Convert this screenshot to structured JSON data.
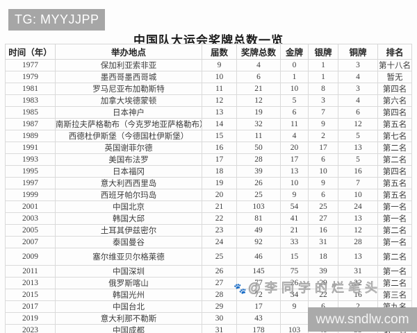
{
  "badge": {
    "text": "TG: MYYJJPP"
  },
  "title": "中国队大运会奖牌总数一览",
  "table": {
    "columns": [
      "时间（年）",
      "举办地点",
      "届数",
      "奖牌总数",
      "金牌",
      "银牌",
      "铜牌",
      "排名"
    ],
    "rows": [
      {
        "year": "1977",
        "host": "保加利亚索非亚",
        "edition": "9",
        "total": "4",
        "gold": "0",
        "silver": "1",
        "bronze": "3",
        "rank": "第十八名"
      },
      {
        "year": "1979",
        "host": "墨西哥墨西哥城",
        "edition": "10",
        "total": "6",
        "gold": "1",
        "silver": "1",
        "bronze": "4",
        "rank": "暂无"
      },
      {
        "year": "1981",
        "host": "罗马尼亚布加勒斯特",
        "edition": "11",
        "total": "21",
        "gold": "10",
        "silver": "8",
        "bronze": "3",
        "rank": "第四名"
      },
      {
        "year": "1983",
        "host": "加拿大埃德蒙顿",
        "edition": "12",
        "total": "12",
        "gold": "5",
        "silver": "3",
        "bronze": "4",
        "rank": "第六名"
      },
      {
        "year": "1985",
        "host": "日本神户",
        "edition": "13",
        "total": "19",
        "gold": "6",
        "silver": "7",
        "bronze": "6",
        "rank": "第四名"
      },
      {
        "year": "1987",
        "host": "南斯拉夫萨格勒布（今克罗地亚萨格勒布）",
        "edition": "14",
        "total": "32",
        "gold": "11",
        "silver": "9",
        "bronze": "12",
        "rank": "第五名"
      },
      {
        "year": "1989",
        "host": "西德杜伊斯堡（今德国杜伊斯堡）",
        "edition": "15",
        "total": "11",
        "gold": "4",
        "silver": "2",
        "bronze": "5",
        "rank": "第七名"
      },
      {
        "year": "1991",
        "host": "英国谢菲尔德",
        "edition": "16",
        "total": "50",
        "gold": "20",
        "silver": "17",
        "bronze": "13",
        "rank": "第二名"
      },
      {
        "year": "1993",
        "host": "美国布法罗",
        "edition": "17",
        "total": "28",
        "gold": "17",
        "silver": "6",
        "bronze": "5",
        "rank": "第二名"
      },
      {
        "year": "1995",
        "host": "日本福冈",
        "edition": "18",
        "total": "39",
        "gold": "13",
        "silver": "10",
        "bronze": "16",
        "rank": "第四名"
      },
      {
        "year": "1997",
        "host": "意大利西西里岛",
        "edition": "19",
        "total": "26",
        "gold": "10",
        "silver": "9",
        "bronze": "7",
        "rank": "第五名"
      },
      {
        "year": "1999",
        "host": "西班牙帕尔玛岛",
        "edition": "20",
        "total": "25",
        "gold": "9",
        "silver": "6",
        "bronze": "10",
        "rank": "第五名"
      },
      {
        "year": "2001",
        "host": "中国北京",
        "edition": "21",
        "total": "103",
        "gold": "54",
        "silver": "25",
        "bronze": "24",
        "rank": "第一名"
      },
      {
        "year": "2003",
        "host": "韩国大邱",
        "edition": "22",
        "total": "81",
        "gold": "41",
        "silver": "27",
        "bronze": "13",
        "rank": "第一名"
      },
      {
        "year": "2005",
        "host": "土耳其伊兹密尔",
        "edition": "23",
        "total": "49",
        "gold": "21",
        "silver": "16",
        "bronze": "12",
        "rank": "第二名"
      },
      {
        "year": "2007",
        "host": "泰国曼谷",
        "edition": "24",
        "total": "92",
        "gold": "33",
        "silver": "31",
        "bronze": "28",
        "rank": "第一名"
      },
      {
        "year": "2009",
        "host": "塞尔维亚贝尔格莱德",
        "edition": "25",
        "total": "46",
        "gold": "15",
        "silver": "18",
        "bronze": "13",
        "rank": "第二名"
      },
      {
        "year": "2011",
        "host": "中国深圳",
        "edition": "26",
        "total": "145",
        "gold": "75",
        "silver": "39",
        "bronze": "31",
        "rank": "第一名"
      },
      {
        "year": "2013",
        "host": "俄罗斯喀山",
        "edition": "27",
        "total": "77",
        "gold": "26",
        "silver": "29",
        "bronze": "22",
        "rank": "第二名"
      },
      {
        "year": "2015",
        "host": "韩国光州",
        "edition": "28",
        "total": "72",
        "gold": "34",
        "silver": "22",
        "bronze": "16",
        "rank": "第三名"
      },
      {
        "year": "2017",
        "host": "中国台北",
        "edition": "29",
        "total": "17",
        "gold": "9",
        "silver": "6",
        "bronze": "2",
        "rank": "第九名"
      },
      {
        "year": "2019",
        "host": "意大利那不勒斯",
        "edition": "30",
        "total": "43",
        "gold": "",
        "silver": "",
        "bronze": "",
        "rank": ""
      },
      {
        "year": "2023",
        "host": "中国成都",
        "edition": "31",
        "total": "178",
        "gold": "103",
        "silver": "40",
        "bronze": "35",
        "rank": "第一名"
      }
    ]
  },
  "watermarks": {
    "center_text": "@李同学的烂笔头",
    "bottom_right_text": "www.sndlw.com"
  },
  "colors": {
    "badge_bg": "#a6a6a6",
    "watermark_box_bg": "#aaaaaa",
    "grid_line": "#dadada",
    "body_text": "#3d3d3d"
  }
}
